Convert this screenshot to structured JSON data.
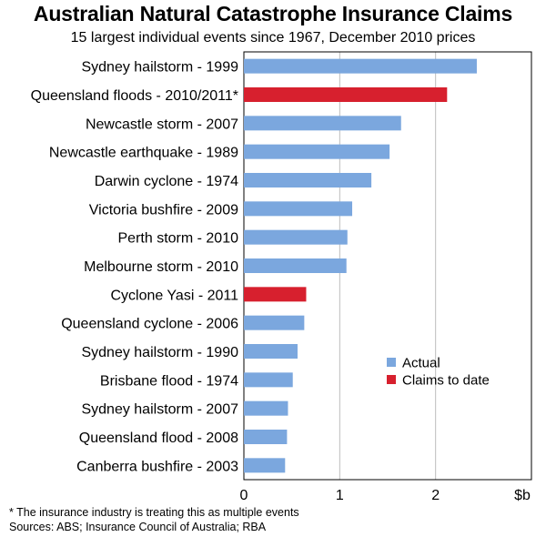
{
  "chart_data": {
    "type": "bar",
    "orientation": "horizontal",
    "title": "Australian Natural Catastrophe Insurance Claims",
    "subtitle": "15 largest individual events since 1967, December 2010 prices",
    "categories": [
      "Sydney hailstorm - 1999",
      "Queensland floods - 2010/2011*",
      "Newcastle storm - 2007",
      "Newcastle earthquake - 1989",
      "Darwin cyclone - 1974",
      "Victoria bushfire - 2009",
      "Perth storm - 2010",
      "Melbourne storm - 2010",
      "Cyclone Yasi - 2011",
      "Queensland cyclone - 2006",
      "Sydney hailstorm - 1990",
      "Brisbane flood - 1974",
      "Sydney hailstorm - 2007",
      "Queensland flood - 2008",
      "Canberra bushfire - 2003"
    ],
    "values": [
      2.43,
      2.12,
      1.64,
      1.52,
      1.33,
      1.13,
      1.08,
      1.07,
      0.65,
      0.63,
      0.56,
      0.51,
      0.46,
      0.45,
      0.43
    ],
    "series_of_each_bar": [
      "Actual",
      "Claims to date",
      "Actual",
      "Actual",
      "Actual",
      "Actual",
      "Actual",
      "Actual",
      "Claims to date",
      "Actual",
      "Actual",
      "Actual",
      "Actual",
      "Actual",
      "Actual"
    ],
    "legend": [
      {
        "name": "Actual",
        "color": "#7BA7DE"
      },
      {
        "name": "Claims to date",
        "color": "#D7202E"
      }
    ],
    "legend_position": "lower-right",
    "xlim": [
      0,
      3
    ],
    "xticks": [
      "0",
      "1",
      "2"
    ],
    "unit_label": "$b",
    "grid": "vertical"
  },
  "footnote": "*   The insurance industry is treating this as multiple events",
  "sources": "Sources: ABS; Insurance Council of Australia; RBA"
}
